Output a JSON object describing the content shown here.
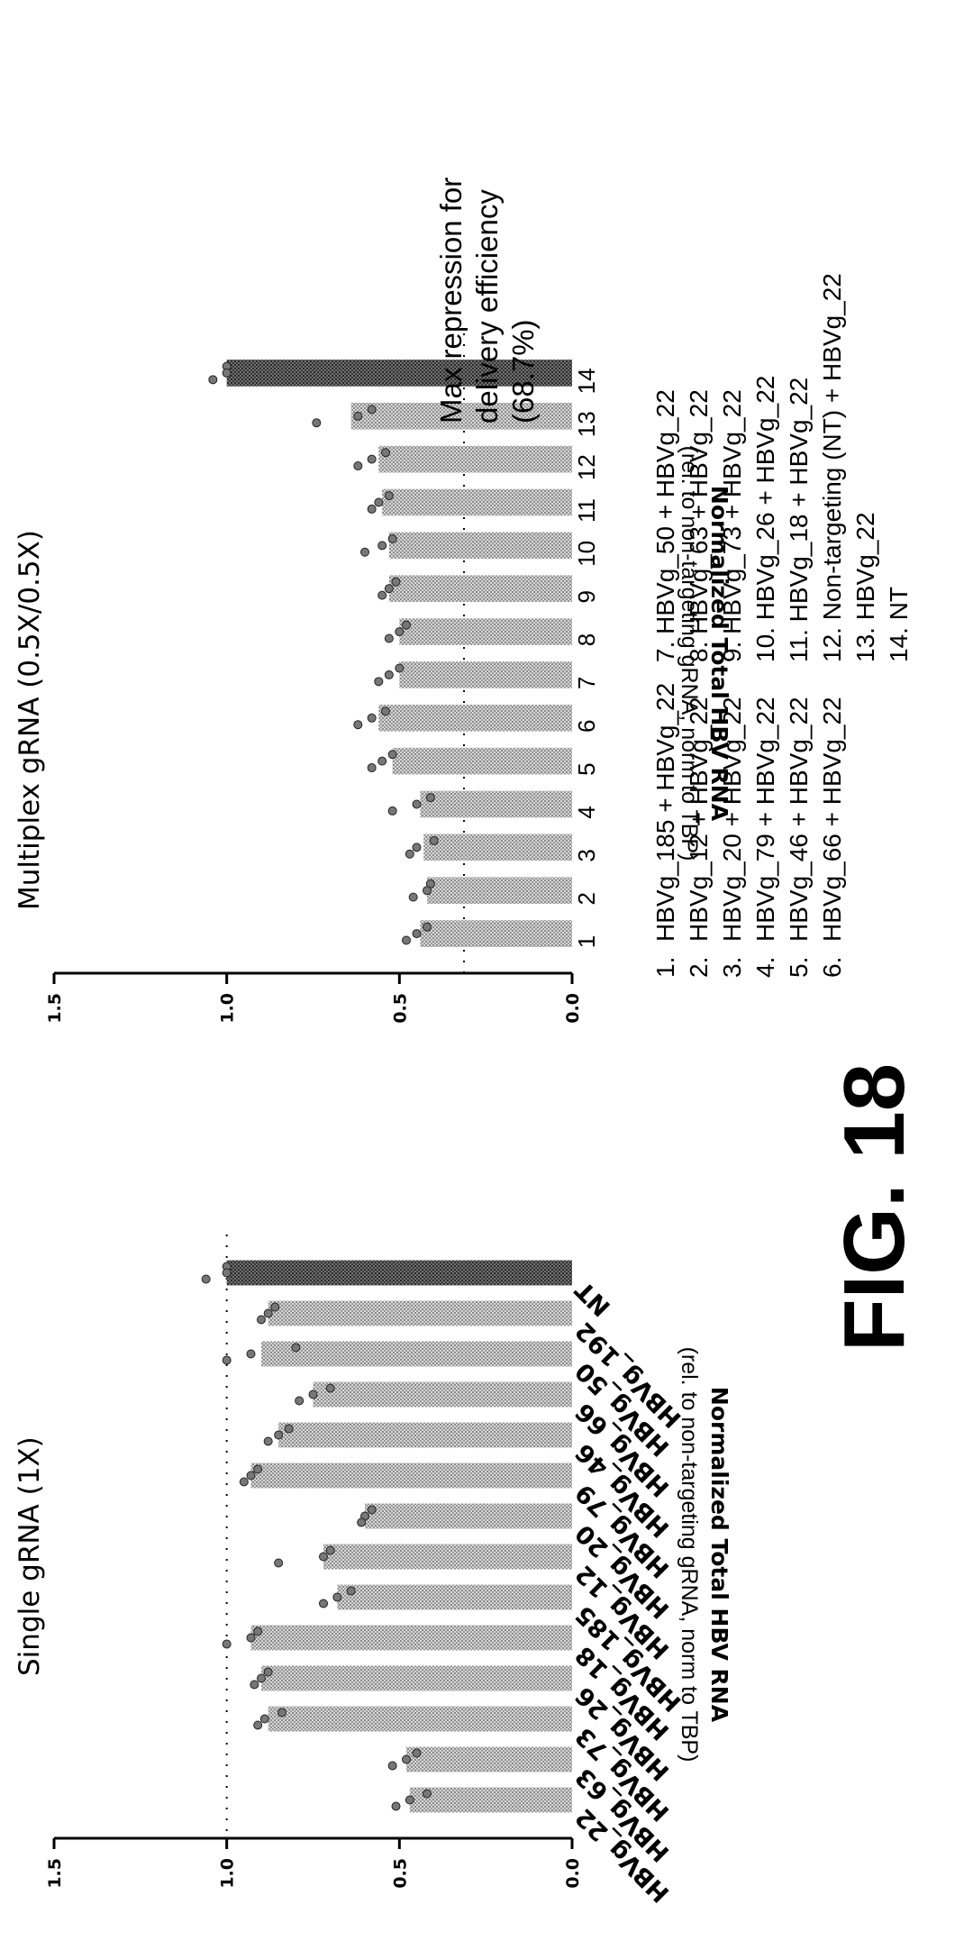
{
  "figure_label": "FIG. 18",
  "annotation": [
    "Max repression for",
    "delivery efficiency",
    "(68.7%)"
  ],
  "legend": {
    "col1": [
      {
        "num": "1.",
        "text": "HBVg_185 + HBVg_22"
      },
      {
        "num": "2.",
        "text": "HBVg_12 + HBVg_22"
      },
      {
        "num": "3.",
        "text": "HBVg_20 + HBVg_22"
      },
      {
        "num": "4.",
        "text": "HBVg_79 + HBVg_22"
      },
      {
        "num": "5.",
        "text": "HBVg_46 + HBVg_22"
      },
      {
        "num": "6.",
        "text": "HBVg_66 + HBVg_22"
      }
    ],
    "col2": [
      "7. HBVg_50 + HBVg_22",
      "8. HBVg_63 + HBVg_22",
      "9. HBVg_73 + HBVg_22",
      "10. HBVg_26 + HBVg_22",
      "11. HBVg_18 + HBVg_22",
      "12. Non-targeting (NT) + HBVg_22",
      "13. HBVg_22",
      "14. NT"
    ]
  },
  "colors": {
    "bar": "#bdbdbd",
    "bar_nt": "#666666",
    "axis": "#000000",
    "dots": "#555555"
  },
  "chart_data": [
    {
      "type": "bar",
      "title": "Single gRNA (1X)",
      "ylabel": "Normalized Total HBV RNA",
      "ylabel_sub": "(rel. to non-targeting gRNA, norm to TBP)",
      "ylim": [
        0,
        1.5
      ],
      "yticks": [
        "0.0",
        "0.5",
        "1.0",
        "1.5"
      ],
      "reference_line": 1.0,
      "categories": [
        "HBVg_22",
        "HBVg_63",
        "HBVg_73",
        "HBVg_26",
        "HBVg_18",
        "HBVg_185",
        "HBVg_12",
        "HBVg_20",
        "HBVg_79",
        "HBVg_46",
        "HBVg_66",
        "HBVg_50",
        "HBVg_192",
        "NT"
      ],
      "values": [
        0.47,
        0.48,
        0.88,
        0.9,
        0.93,
        0.68,
        0.72,
        0.6,
        0.93,
        0.85,
        0.75,
        0.9,
        0.88,
        1.0
      ],
      "replicates": [
        [
          0.42,
          0.47,
          0.51
        ],
        [
          0.45,
          0.48,
          0.52
        ],
        [
          0.84,
          0.89,
          0.91
        ],
        [
          0.88,
          0.9,
          0.92
        ],
        [
          0.91,
          0.93,
          1.0
        ],
        [
          0.64,
          0.68,
          0.72
        ],
        [
          0.7,
          0.72,
          0.85
        ],
        [
          0.58,
          0.6,
          0.61
        ],
        [
          0.91,
          0.93,
          0.95
        ],
        [
          0.82,
          0.85,
          0.88
        ],
        [
          0.7,
          0.75,
          0.79
        ],
        [
          0.8,
          0.93,
          1.0
        ],
        [
          0.86,
          0.88,
          0.9
        ],
        [
          1.0,
          1.0,
          1.06
        ]
      ]
    },
    {
      "type": "bar",
      "title": "Multiplex gRNA (0.5X/0.5X)",
      "ylabel": "Normalized Total HBV RNA",
      "ylabel_sub": "(rel. to non-targeting gRNA, norm to TBP)",
      "ylim": [
        0,
        1.5
      ],
      "yticks": [
        "0.0",
        "0.5",
        "1.0",
        "1.5"
      ],
      "reference_line": 0.313,
      "categories": [
        "1",
        "2",
        "3",
        "4",
        "5",
        "6",
        "7",
        "8",
        "9",
        "10",
        "11",
        "12",
        "13",
        "14"
      ],
      "values": [
        0.44,
        0.42,
        0.43,
        0.44,
        0.52,
        0.56,
        0.5,
        0.5,
        0.53,
        0.53,
        0.55,
        0.56,
        0.64,
        1.0
      ],
      "replicates": [
        [
          0.42,
          0.45,
          0.48
        ],
        [
          0.41,
          0.42,
          0.46
        ],
        [
          0.4,
          0.45,
          0.47
        ],
        [
          0.41,
          0.45,
          0.52
        ],
        [
          0.52,
          0.55,
          0.58
        ],
        [
          0.54,
          0.58,
          0.62
        ],
        [
          0.5,
          0.53,
          0.56
        ],
        [
          0.48,
          0.5,
          0.53
        ],
        [
          0.51,
          0.53,
          0.55
        ],
        [
          0.52,
          0.55,
          0.6
        ],
        [
          0.53,
          0.56,
          0.58
        ],
        [
          0.54,
          0.58,
          0.62
        ],
        [
          0.58,
          0.62,
          0.74
        ],
        [
          1.0,
          1.0,
          1.04
        ]
      ]
    }
  ]
}
